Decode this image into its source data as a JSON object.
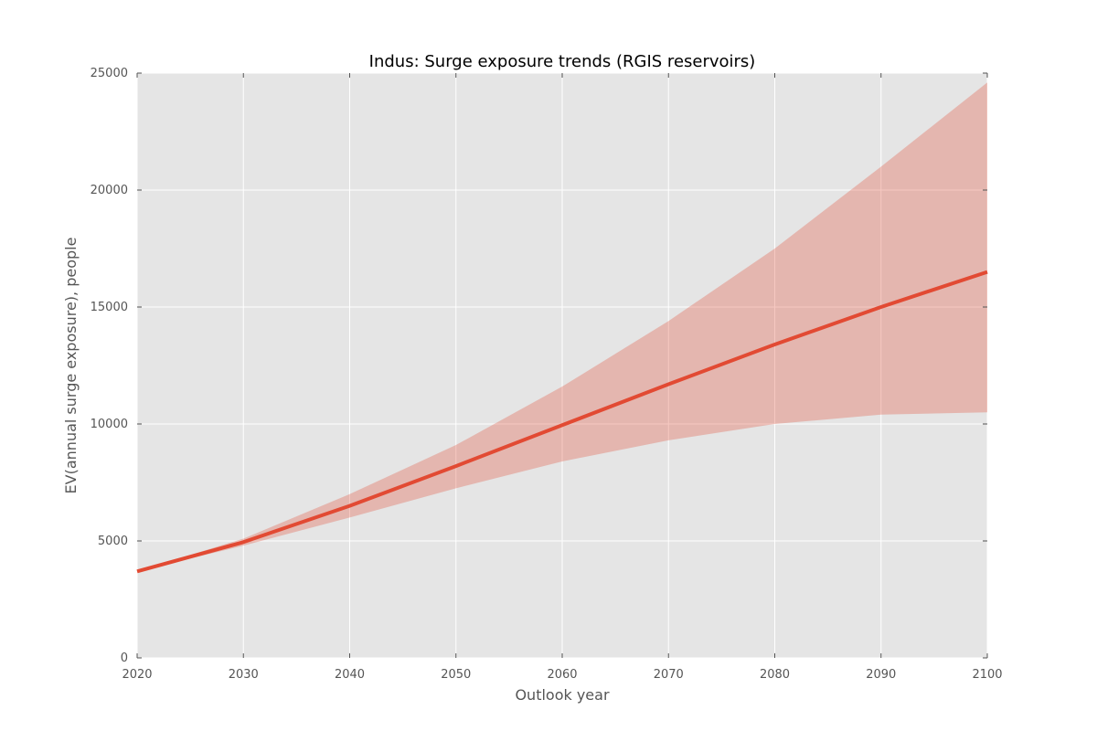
{
  "chart_data": {
    "type": "line",
    "title": "Indus: Surge exposure trends (RGIS reservoirs)",
    "xlabel": "Outlook year",
    "ylabel": "EV(annual surge exposure), people",
    "xlim": [
      2020,
      2100
    ],
    "ylim": [
      0,
      25000
    ],
    "xticks": [
      2020,
      2030,
      2040,
      2050,
      2060,
      2070,
      2080,
      2090,
      2100
    ],
    "yticks": [
      0,
      5000,
      10000,
      15000,
      20000,
      25000
    ],
    "grid": true,
    "legend": "none",
    "colors": {
      "plot_background": "#e5e5e5",
      "line": "#e24a33",
      "band": "#e24a33"
    },
    "x": [
      2020,
      2030,
      2040,
      2050,
      2060,
      2070,
      2080,
      2090,
      2100
    ],
    "series": [
      {
        "values": [
          3700,
          4950,
          6500,
          8200,
          9950,
          11700,
          13400,
          15000,
          16500
        ],
        "lower": [
          3700,
          4800,
          6000,
          7250,
          8400,
          9300,
          10000,
          10400,
          10500
        ],
        "upper": [
          3700,
          5100,
          7000,
          9100,
          11600,
          14400,
          17500,
          21000,
          24600
        ]
      }
    ]
  }
}
